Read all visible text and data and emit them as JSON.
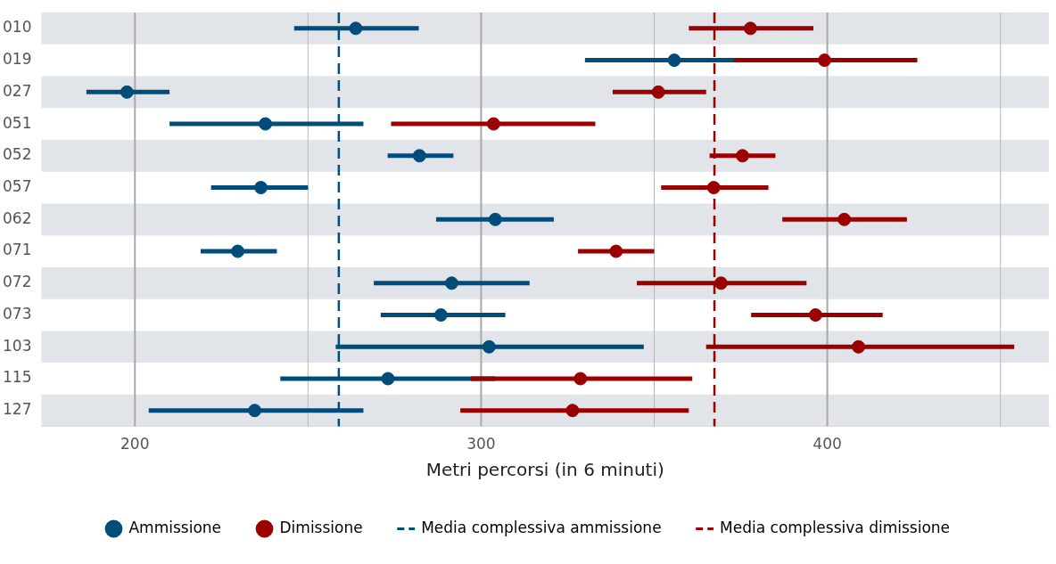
{
  "chart_data": {
    "type": "scatter",
    "orientation": "horizontal",
    "xlabel": "Metri percorsi (in 6 minuti)",
    "categories": [
      "010",
      "019",
      "027",
      "051",
      "052",
      "057",
      "062",
      "071",
      "072",
      "073",
      "103",
      "115",
      "127"
    ],
    "xlim": [
      173,
      464
    ],
    "xticks": [
      200,
      {
        "value": 250,
        "label": null
      },
      300,
      {
        "value": 350,
        "label": null
      },
      400,
      {
        "value": 450,
        "label": null
      }
    ],
    "grid": "x",
    "legend": "bottom",
    "marker": "circle",
    "series": [
      {
        "name": "Ammissione",
        "color": "#004c7a",
        "values": [
          263.8,
          355.8,
          197.7,
          237.7,
          282.2,
          236.4,
          304.1,
          229.7,
          291.5,
          288.4,
          302.3,
          273.1,
          234.6
        ],
        "errors": [
          [
            246,
            282
          ],
          [
            330,
            382
          ],
          [
            186,
            210
          ],
          [
            210,
            266
          ],
          [
            273,
            292
          ],
          [
            222,
            250
          ],
          [
            287,
            321
          ],
          [
            219,
            241
          ],
          [
            269,
            314
          ],
          [
            271,
            307
          ],
          [
            258,
            347
          ],
          [
            242,
            304
          ],
          [
            204,
            266
          ]
        ]
      },
      {
        "name": "Dimissione",
        "color": "#9b0000",
        "values": [
          377.8,
          399.2,
          351.2,
          303.6,
          375.5,
          367.2,
          404.9,
          339.0,
          369.3,
          396.6,
          409.0,
          328.7,
          326.4
        ],
        "errors": [
          [
            360,
            396
          ],
          [
            373,
            426
          ],
          [
            338,
            365
          ],
          [
            274,
            333
          ],
          [
            366,
            385
          ],
          [
            352,
            383
          ],
          [
            387,
            423
          ],
          [
            328,
            350
          ],
          [
            345,
            394
          ],
          [
            378,
            416
          ],
          [
            365,
            454
          ],
          [
            297,
            361
          ],
          [
            294,
            360
          ]
        ]
      }
    ],
    "ref_lines": [
      {
        "axis": "x",
        "value": 258.9,
        "label": "Media complessiva ammissione",
        "color": "#004c7a",
        "line_style": "dashed"
      },
      {
        "axis": "x",
        "value": 367.4,
        "label": "Media complessiva dimissione",
        "color": "#9b0000",
        "line_style": "dashed"
      }
    ]
  }
}
